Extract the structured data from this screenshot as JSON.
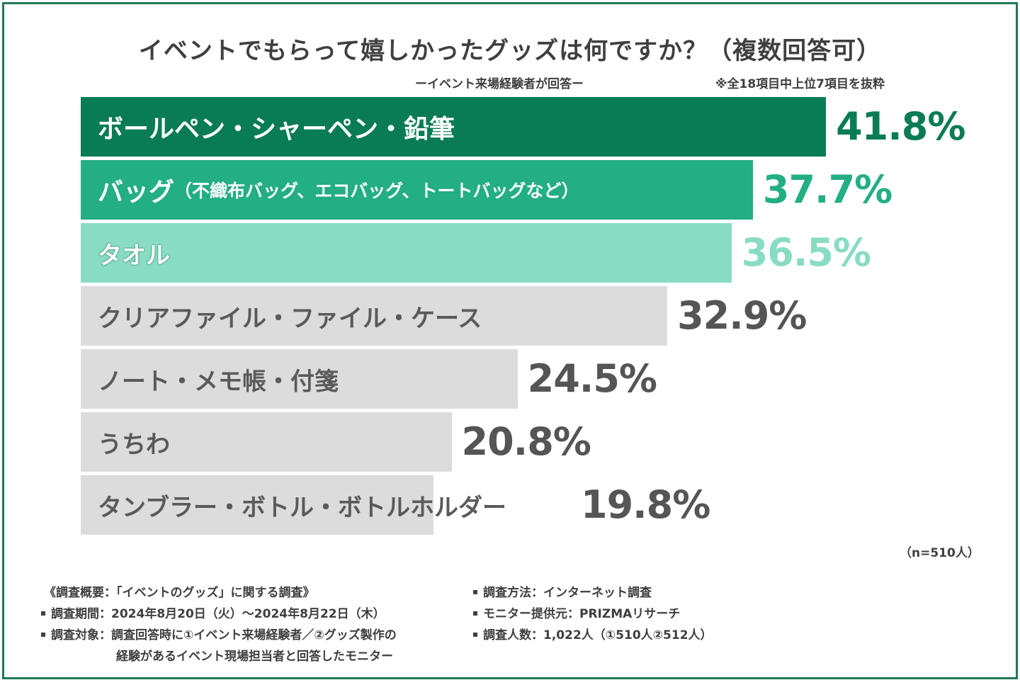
{
  "title": "イベントでもらって嬉しかったグッズは何ですか？（複数回答可）",
  "subtitle": "ーイベント来場経験者が回答ー",
  "note": "※全18項目中上位7項目を抜粋",
  "sample_note": "（n=510人）",
  "chart_data": {
    "type": "bar",
    "orientation": "horizontal",
    "title": "イベントでもらって嬉しかったグッズは何ですか？（複数回答可）",
    "xlabel": "",
    "ylabel": "",
    "xlim": [
      0,
      50
    ],
    "unit": "%",
    "categories": [
      "ボールペン・シャーペン・鉛筆",
      "バッグ（不織布バッグ、エコバッグ、トートバッグなど）",
      "タオル",
      "クリアファイル・ファイル・ケース",
      "ノート・メモ帳・付箋",
      "うちわ",
      "タンブラー・ボトル・ボトルホルダー"
    ],
    "values": [
      41.8,
      37.7,
      36.5,
      32.9,
      24.5,
      20.8,
      19.8
    ],
    "value_labels": [
      "41.8%",
      "37.7%",
      "36.5%",
      "32.9%",
      "24.5%",
      "20.8%",
      "19.8%"
    ],
    "bar_colors": [
      "#0a7c55",
      "#23ae84",
      "#88dcc3",
      "#dcdcdc",
      "#dcdcdc",
      "#dcdcdc",
      "#dcdcdc"
    ],
    "label_colors": [
      "#ffffff",
      "#ffffff",
      "#ffffff",
      "#5a5a5a",
      "#5a5a5a",
      "#5a5a5a",
      "#5a5a5a"
    ],
    "value_colors": [
      "#0a7c55",
      "#23ae84",
      "#88dcc3",
      "#555555",
      "#555555",
      "#555555",
      "#555555"
    ]
  },
  "survey": {
    "outline": "《調査概要：「イベントのグッズ」に関する調査》",
    "period": "調査期間：2024年8月20日（火）〜2024年8月22日（木）",
    "target_line1": "調査対象：調査回答時に①イベント来場経験者／②グッズ製作の",
    "target_line2": "経験があるイベント現場担当者と回答したモニター",
    "method": "調査方法：インターネット調査",
    "provider": "モニター提供元：PRIZMAリサーチ",
    "count": "調査人数：1,022人（①510人②512人）"
  }
}
